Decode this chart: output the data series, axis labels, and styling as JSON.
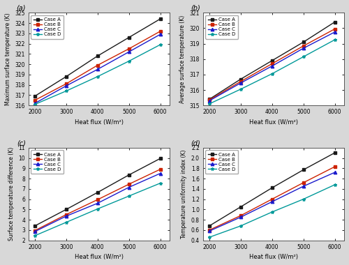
{
  "x": [
    2000,
    3000,
    4000,
    5000,
    6000
  ],
  "panel_a": {
    "title": "(a)",
    "ylabel": "Maximum surface temperature (K)",
    "xlabel": "Heat flux (W/m²)",
    "ylim": [
      316,
      325
    ],
    "yticks": [
      316,
      317,
      318,
      319,
      320,
      321,
      322,
      323,
      324,
      325
    ],
    "ytick_labels": [
      "316",
      "317",
      "318",
      "319",
      "320",
      "321",
      "322",
      "323",
      "324",
      "325"
    ],
    "case_A": [
      316.9,
      318.8,
      320.8,
      322.6,
      324.4
    ],
    "case_B": [
      316.5,
      318.1,
      319.9,
      321.5,
      323.2
    ],
    "case_C": [
      316.2,
      317.9,
      319.5,
      321.2,
      322.9
    ],
    "case_D": [
      316.1,
      317.4,
      318.8,
      320.3,
      321.9
    ]
  },
  "panel_b": {
    "title": "(b)",
    "ylabel": "Average surface temperature (K)",
    "xlabel": "Heat flux (W/m²)",
    "ylim": [
      315,
      321
    ],
    "yticks": [
      315,
      316,
      317,
      318,
      319,
      320,
      321
    ],
    "ytick_labels": [
      "315",
      "316",
      "317",
      "318",
      "319",
      "320",
      "321"
    ],
    "case_A": [
      315.4,
      316.7,
      317.9,
      319.1,
      320.4
    ],
    "case_B": [
      315.35,
      316.55,
      317.7,
      318.85,
      319.95
    ],
    "case_C": [
      315.3,
      316.45,
      317.55,
      318.7,
      319.75
    ],
    "case_D": [
      315.1,
      316.05,
      317.05,
      318.15,
      319.25
    ]
  },
  "panel_c": {
    "title": "(c)",
    "ylabel": "Surface temperature difference (K)",
    "xlabel": "Heat flux (W/m²)",
    "ylim": [
      2,
      11
    ],
    "yticks": [
      2,
      3,
      4,
      5,
      6,
      7,
      8,
      9,
      10,
      11
    ],
    "ytick_labels": [
      "2",
      "3",
      "4",
      "5",
      "6",
      "7",
      "8",
      "9",
      "10",
      "11"
    ],
    "case_A": [
      3.4,
      5.0,
      6.65,
      8.35,
      9.95
    ],
    "case_B": [
      2.95,
      4.5,
      5.95,
      7.45,
      8.9
    ],
    "case_C": [
      2.85,
      4.35,
      5.6,
      7.15,
      8.5
    ],
    "case_D": [
      2.45,
      3.75,
      5.05,
      6.3,
      7.55
    ]
  },
  "panel_d": {
    "title": "(d)",
    "ylabel": "Temperature uniformity index (K)",
    "xlabel": "Heat flux (W/m²)",
    "ylim": [
      0.4,
      2.2
    ],
    "yticks": [
      0.4,
      0.6,
      0.8,
      1.0,
      1.2,
      1.4,
      1.6,
      1.8,
      2.0,
      2.2
    ],
    "ytick_labels": [
      "0.4",
      "0.6",
      "0.8",
      "1.0",
      "1.2",
      "1.4",
      "1.6",
      "1.8",
      "2.0",
      "2.2"
    ],
    "case_A": [
      0.68,
      1.05,
      1.42,
      1.77,
      2.1
    ],
    "case_B": [
      0.6,
      0.88,
      1.2,
      1.52,
      1.83
    ],
    "case_C": [
      0.58,
      0.85,
      1.15,
      1.45,
      1.72
    ],
    "case_D": [
      0.46,
      0.68,
      0.95,
      1.2,
      1.48
    ]
  },
  "colors": {
    "case_A": "#1a1a1a",
    "case_B": "#cc2200",
    "case_C": "#1a1acc",
    "case_D": "#009999"
  },
  "markers": {
    "case_A": "s",
    "case_B": "s",
    "case_C": "^",
    "case_D": "*"
  },
  "xticks": [
    2000,
    3000,
    4000,
    5000,
    6000
  ],
  "figure_bg": "#d8d8d8",
  "axes_bg": "#ffffff"
}
